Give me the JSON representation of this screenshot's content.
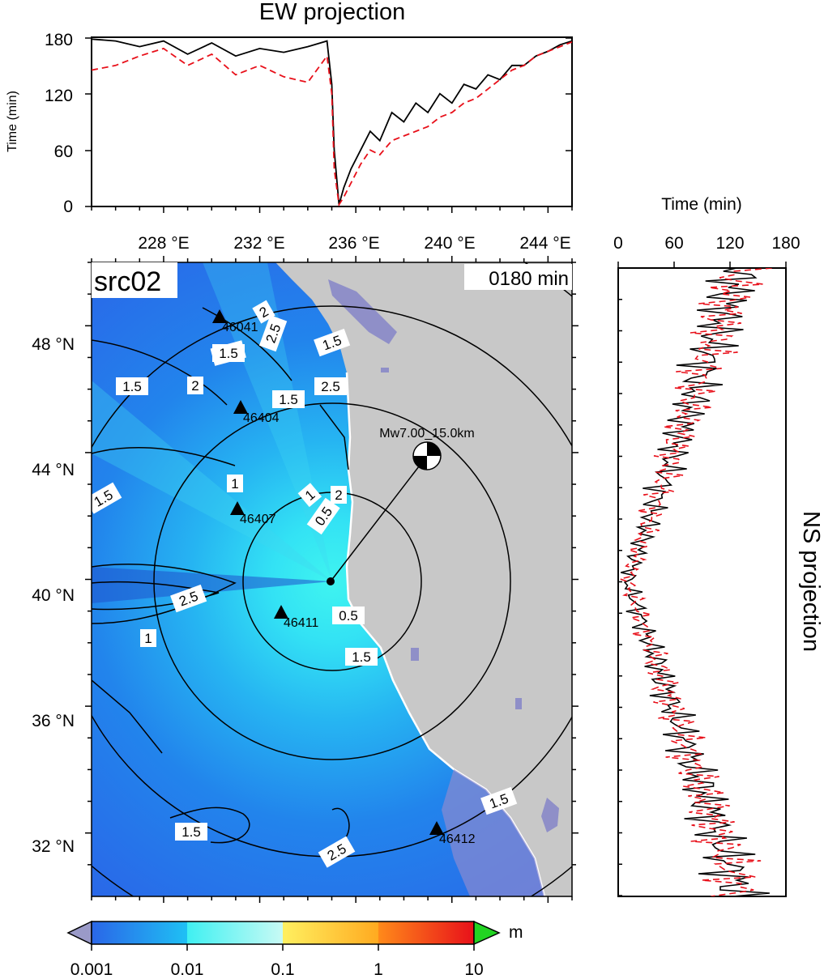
{
  "ew_panel": {
    "title": "EW projection",
    "ylabel": "Time (min)",
    "y_ticks": [
      "0",
      "60",
      "120",
      "180"
    ]
  },
  "ns_panel": {
    "title": "NS projection",
    "xlabel": "Time (min)",
    "x_ticks": [
      "0",
      "60",
      "120",
      "180"
    ]
  },
  "map": {
    "source_label": "src02",
    "time_label": "0180 min",
    "lon_ticks": [
      "228 °E",
      "232 °E",
      "236 °E",
      "240 °E",
      "244 °E"
    ],
    "lat_ticks": [
      "48 °N",
      "44 °N",
      "40 °N",
      "36 °N",
      "32 °N"
    ],
    "event_label": "Mw7.00_15.0km",
    "stations": [
      {
        "id": "46411",
        "label": "46411"
      },
      {
        "id": "46407",
        "label": "46407"
      },
      {
        "id": "46404",
        "label": "46404"
      },
      {
        "id": "46041",
        "label": "46041"
      },
      {
        "id": "46412",
        "label": "46412"
      }
    ],
    "contour_labels": [
      "2",
      "2.5",
      "1.5",
      "1.5",
      "1.5",
      "2",
      "1.5",
      "2.5",
      "1.5",
      "1",
      "1.5",
      "1",
      "0.5",
      "2",
      "2.5",
      "0.5",
      "1",
      "1.5",
      "1.5",
      "2.5",
      "1.5"
    ],
    "colors": {
      "ocean_deep": "#2a66e8",
      "ocean_mid": "#1d9bf0",
      "ocean_cyan": "#3ff0f2",
      "land": "#c8c8c8",
      "lake": "#8f8fc8"
    }
  },
  "colorbar": {
    "unit": "m",
    "tick_labels": [
      "0.001",
      "0.01",
      "0.1",
      "1",
      "10"
    ],
    "colors": [
      "#2a66e8",
      "#1fc0f4",
      "#a9f8f4",
      "#ffe44a",
      "#ff8a1a",
      "#e8281a",
      "#22d422",
      "#9a9ac8"
    ]
  },
  "chart_data": {
    "type": "line",
    "title": "EW projection",
    "xlabel": "",
    "ylabel": "Time (min)",
    "xlim": [
      225,
      245
    ],
    "ylim": [
      0,
      180
    ],
    "series": [
      {
        "x": [
          225,
          226,
          227,
          228,
          229,
          230,
          231,
          232,
          233,
          234,
          234.8,
          235,
          235.1,
          235.3,
          235.5,
          235.8,
          236.2,
          236.6,
          237,
          237.5,
          238,
          238.5,
          239,
          239.5,
          240,
          240.5,
          241,
          241.5,
          242,
          242.5,
          243,
          243.5,
          244,
          244.5,
          245
        ],
        "y": [
          178,
          176,
          170,
          176,
          162,
          174,
          160,
          168,
          164,
          170,
          176,
          130,
          60,
          2,
          20,
          40,
          60,
          80,
          70,
          100,
          90,
          110,
          100,
          120,
          110,
          130,
          125,
          140,
          135,
          150,
          150,
          160,
          165,
          172,
          176
        ]
      },
      {
        "x": [
          225,
          226,
          227,
          228,
          229,
          230,
          231,
          232,
          233,
          234,
          234.8,
          235,
          235.1,
          235.3,
          235.5,
          235.8,
          236.2,
          236.6,
          237,
          237.5,
          238,
          238.5,
          239,
          239.5,
          240,
          240.5,
          241,
          241.5,
          242,
          242.5,
          243,
          243.5,
          244,
          244.5,
          245
        ],
        "y": [
          145,
          150,
          160,
          168,
          150,
          162,
          140,
          150,
          138,
          132,
          160,
          120,
          40,
          2,
          10,
          25,
          45,
          60,
          55,
          70,
          75,
          80,
          85,
          95,
          100,
          110,
          115,
          125,
          135,
          145,
          150,
          160,
          165,
          170,
          175
        ]
      }
    ]
  }
}
